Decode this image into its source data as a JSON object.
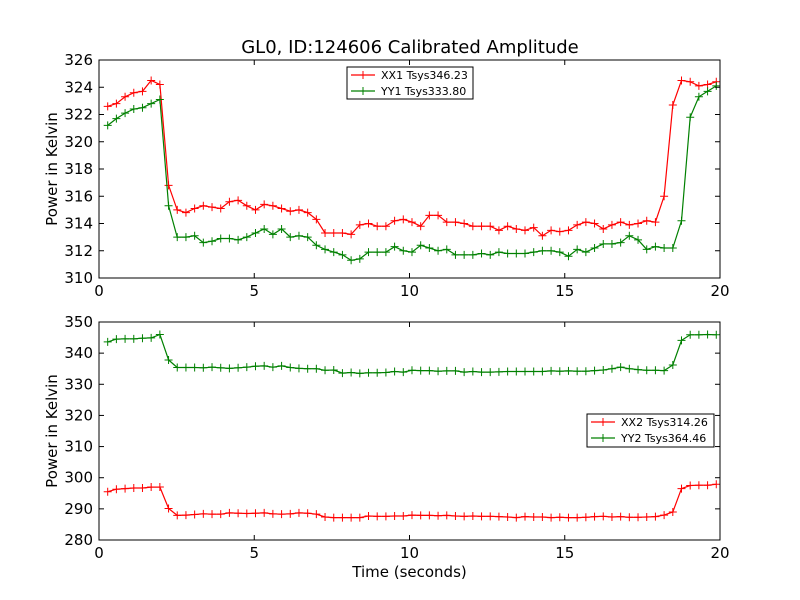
{
  "title": "GL0, ID:124606 Calibrated Amplitude",
  "chart_data": [
    {
      "type": "line",
      "ylabel": "Power in Kelvin",
      "xlabel": "",
      "xlim": [
        0,
        20
      ],
      "ylim": [
        310,
        326
      ],
      "xticks": [
        0,
        5,
        10,
        15,
        20
      ],
      "yticks": [
        310,
        312,
        314,
        316,
        318,
        320,
        322,
        324,
        326
      ],
      "legend_position": "top-center",
      "series": [
        {
          "name": "XX1 Tsys346.23",
          "color": "#ff0000",
          "x": [
            0.28,
            0.56,
            0.84,
            1.12,
            1.4,
            1.68,
            1.96,
            2.24,
            2.52,
            2.8,
            3.08,
            3.36,
            3.64,
            3.92,
            4.2,
            4.48,
            4.76,
            5.04,
            5.32,
            5.6,
            5.88,
            6.16,
            6.44,
            6.72,
            7.0,
            7.28,
            7.56,
            7.84,
            8.12,
            8.4,
            8.68,
            8.96,
            9.24,
            9.52,
            9.8,
            10.08,
            10.36,
            10.64,
            10.92,
            11.2,
            11.48,
            11.76,
            12.04,
            12.32,
            12.6,
            12.88,
            13.16,
            13.44,
            13.72,
            14.0,
            14.28,
            14.56,
            14.84,
            15.12,
            15.4,
            15.68,
            15.96,
            16.24,
            16.52,
            16.8,
            17.08,
            17.36,
            17.64,
            17.92,
            18.2,
            18.48,
            18.76,
            19.04,
            19.32,
            19.6,
            19.88
          ],
          "y": [
            322.6,
            322.8,
            323.3,
            323.6,
            323.7,
            324.5,
            324.2,
            316.8,
            315.0,
            314.8,
            315.1,
            315.3,
            315.2,
            315.1,
            315.6,
            315.7,
            315.3,
            315.0,
            315.4,
            315.3,
            315.1,
            314.9,
            315.0,
            314.8,
            314.3,
            313.3,
            313.3,
            313.3,
            313.2,
            313.9,
            314.0,
            313.8,
            313.8,
            314.2,
            314.3,
            314.1,
            313.8,
            314.6,
            314.6,
            314.1,
            314.1,
            314.0,
            313.8,
            313.8,
            313.8,
            313.5,
            313.8,
            313.6,
            313.5,
            313.7,
            313.1,
            313.5,
            313.4,
            313.5,
            313.9,
            314.1,
            314.0,
            313.6,
            313.9,
            314.1,
            313.9,
            314.0,
            314.2,
            314.1,
            316.0,
            322.7,
            324.5,
            324.4,
            324.1,
            324.2,
            324.4
          ]
        },
        {
          "name": "YY1 Tsys333.80",
          "color": "#008000",
          "x": [
            0.28,
            0.56,
            0.84,
            1.12,
            1.4,
            1.68,
            1.96,
            2.24,
            2.52,
            2.8,
            3.08,
            3.36,
            3.64,
            3.92,
            4.2,
            4.48,
            4.76,
            5.04,
            5.32,
            5.6,
            5.88,
            6.16,
            6.44,
            6.72,
            7.0,
            7.28,
            7.56,
            7.84,
            8.12,
            8.4,
            8.68,
            8.96,
            9.24,
            9.52,
            9.8,
            10.08,
            10.36,
            10.64,
            10.92,
            11.2,
            11.48,
            11.76,
            12.04,
            12.32,
            12.6,
            12.88,
            13.16,
            13.44,
            13.72,
            14.0,
            14.28,
            14.56,
            14.84,
            15.12,
            15.4,
            15.68,
            15.96,
            16.24,
            16.52,
            16.8,
            17.08,
            17.36,
            17.64,
            17.92,
            18.2,
            18.48,
            18.76,
            19.04,
            19.32,
            19.6,
            19.88
          ],
          "y": [
            321.2,
            321.7,
            322.1,
            322.4,
            322.5,
            322.8,
            323.1,
            315.3,
            313.0,
            313.0,
            313.1,
            312.6,
            312.7,
            312.9,
            312.9,
            312.8,
            313.0,
            313.3,
            313.6,
            313.2,
            313.6,
            313.0,
            313.1,
            313.0,
            312.4,
            312.1,
            311.9,
            311.7,
            311.3,
            311.4,
            311.9,
            311.9,
            311.9,
            312.3,
            312.0,
            311.9,
            312.4,
            312.2,
            312.0,
            312.1,
            311.7,
            311.7,
            311.7,
            311.8,
            311.7,
            311.9,
            311.8,
            311.8,
            311.8,
            311.9,
            312.0,
            312.0,
            311.9,
            311.6,
            312.1,
            311.9,
            312.2,
            312.5,
            312.5,
            312.6,
            313.1,
            312.8,
            312.1,
            312.3,
            312.2,
            312.2,
            314.2,
            321.8,
            323.3,
            323.7,
            324.1
          ]
        }
      ]
    },
    {
      "type": "line",
      "ylabel": "Power in Kelvin",
      "xlabel": "Time (seconds)",
      "xlim": [
        0,
        20
      ],
      "ylim": [
        280,
        350
      ],
      "xticks": [
        0,
        5,
        10,
        15,
        20
      ],
      "yticks": [
        280,
        290,
        300,
        310,
        320,
        330,
        340,
        350
      ],
      "legend_position": "center-right",
      "series": [
        {
          "name": "XX2 Tsys314.26",
          "color": "#ff0000",
          "x": [
            0.28,
            0.56,
            0.84,
            1.12,
            1.4,
            1.68,
            1.96,
            2.24,
            2.52,
            2.8,
            3.08,
            3.36,
            3.64,
            3.92,
            4.2,
            4.48,
            4.76,
            5.04,
            5.32,
            5.6,
            5.88,
            6.16,
            6.44,
            6.72,
            7.0,
            7.28,
            7.56,
            7.84,
            8.12,
            8.4,
            8.68,
            8.96,
            9.24,
            9.52,
            9.8,
            10.08,
            10.36,
            10.64,
            10.92,
            11.2,
            11.48,
            11.76,
            12.04,
            12.32,
            12.6,
            12.88,
            13.16,
            13.44,
            13.72,
            14.0,
            14.28,
            14.56,
            14.84,
            15.12,
            15.4,
            15.68,
            15.96,
            16.24,
            16.52,
            16.8,
            17.08,
            17.36,
            17.64,
            17.92,
            18.2,
            18.48,
            18.76,
            19.04,
            19.32,
            19.6,
            19.88
          ],
          "y": [
            295.5,
            296.3,
            296.5,
            296.7,
            296.7,
            297.0,
            297.0,
            290.1,
            287.9,
            288.0,
            288.2,
            288.4,
            288.3,
            288.3,
            288.7,
            288.6,
            288.5,
            288.6,
            288.7,
            288.4,
            288.3,
            288.4,
            288.7,
            288.6,
            288.3,
            287.4,
            287.2,
            287.2,
            287.2,
            287.2,
            287.7,
            287.6,
            287.6,
            287.7,
            287.7,
            288.0,
            287.9,
            287.9,
            287.8,
            287.9,
            287.7,
            287.6,
            287.7,
            287.6,
            287.6,
            287.5,
            287.4,
            287.2,
            287.5,
            287.4,
            287.4,
            287.2,
            287.3,
            287.2,
            287.2,
            287.3,
            287.5,
            287.6,
            287.4,
            287.5,
            287.3,
            287.3,
            287.4,
            287.5,
            288.0,
            289.0,
            296.5,
            297.5,
            297.6,
            297.6,
            297.9
          ]
        },
        {
          "name": "YY2 Tsys364.46",
          "color": "#008000",
          "x": [
            0.28,
            0.56,
            0.84,
            1.12,
            1.4,
            1.68,
            1.96,
            2.24,
            2.52,
            2.8,
            3.08,
            3.36,
            3.64,
            3.92,
            4.2,
            4.48,
            4.76,
            5.04,
            5.32,
            5.6,
            5.88,
            6.16,
            6.44,
            6.72,
            7.0,
            7.28,
            7.56,
            7.84,
            8.12,
            8.4,
            8.68,
            8.96,
            9.24,
            9.52,
            9.8,
            10.08,
            10.36,
            10.64,
            10.92,
            11.2,
            11.48,
            11.76,
            12.04,
            12.32,
            12.6,
            12.88,
            13.16,
            13.44,
            13.72,
            14.0,
            14.28,
            14.56,
            14.84,
            15.12,
            15.4,
            15.68,
            15.96,
            16.24,
            16.52,
            16.8,
            17.08,
            17.36,
            17.64,
            17.92,
            18.2,
            18.48,
            18.76,
            19.04,
            19.32,
            19.6,
            19.88
          ],
          "y": [
            343.6,
            344.5,
            344.6,
            344.6,
            344.8,
            344.9,
            346.0,
            337.8,
            335.4,
            335.4,
            335.4,
            335.3,
            335.5,
            335.3,
            335.1,
            335.3,
            335.5,
            335.8,
            335.9,
            335.5,
            335.9,
            335.4,
            335.1,
            335.0,
            335.0,
            334.5,
            334.6,
            333.6,
            333.8,
            333.5,
            333.7,
            333.7,
            333.8,
            334.1,
            333.9,
            334.5,
            334.4,
            334.4,
            334.2,
            334.3,
            334.3,
            333.9,
            334.1,
            333.9,
            333.9,
            334.0,
            334.1,
            334.1,
            334.1,
            334.1,
            334.1,
            334.3,
            334.2,
            334.3,
            334.2,
            334.2,
            334.4,
            334.6,
            335.0,
            335.5,
            335.0,
            334.7,
            334.5,
            334.5,
            334.4,
            336.2,
            344.1,
            345.9,
            345.9,
            346.0,
            345.9
          ]
        }
      ]
    }
  ]
}
